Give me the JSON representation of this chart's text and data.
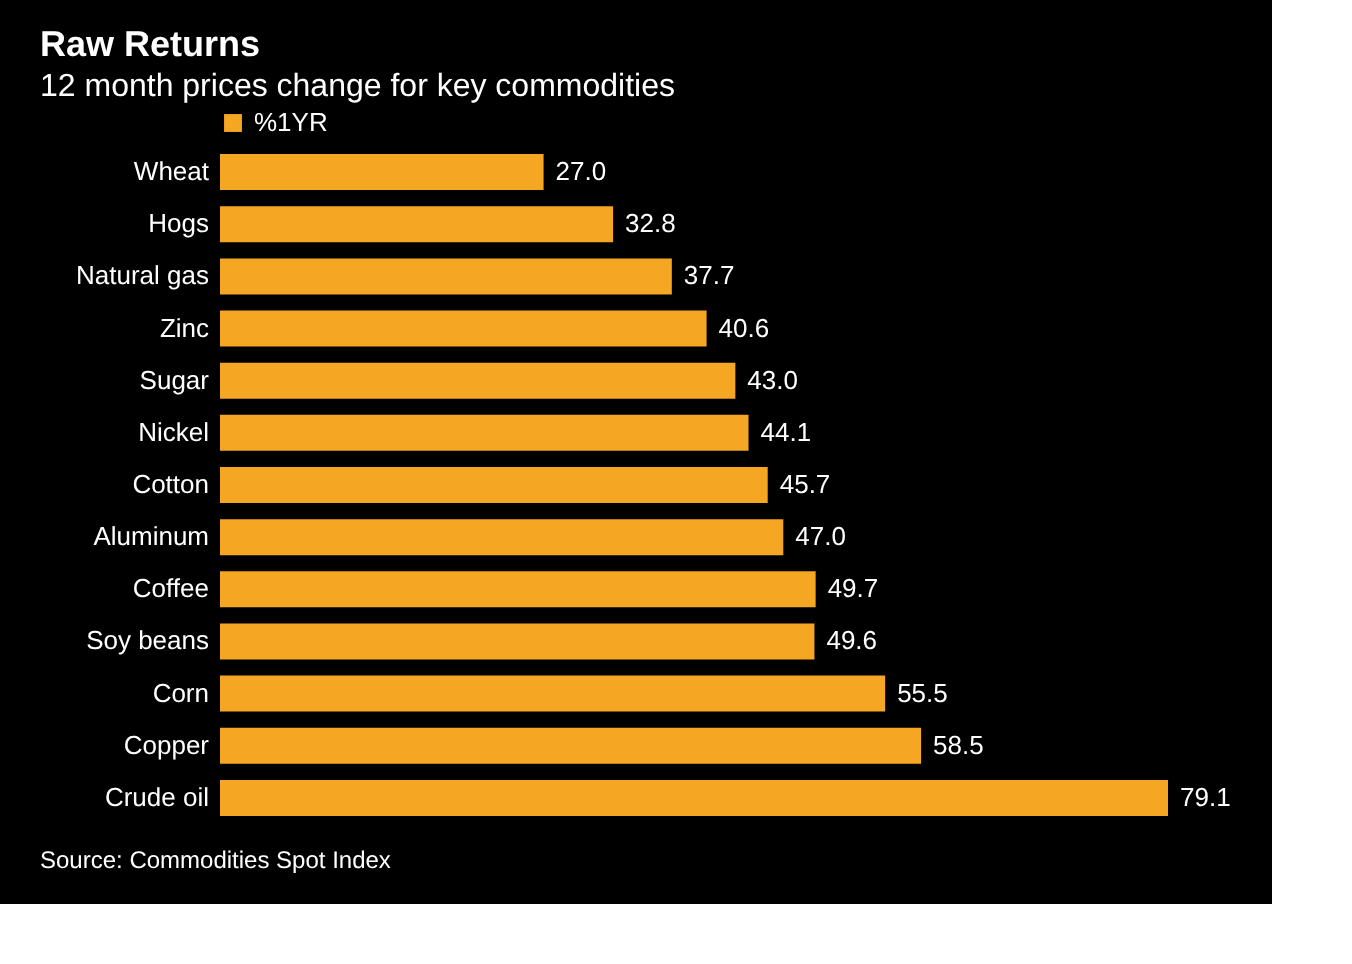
{
  "chart_data": {
    "type": "bar",
    "orientation": "horizontal",
    "title": "Raw Returns",
    "subtitle": "12 month prices change for key commodities",
    "categories": [
      "Wheat",
      "Hogs",
      "Natural gas",
      "Zinc",
      "Sugar",
      "Nickel",
      "Cotton",
      "Aluminum",
      "Coffee",
      "Soy beans",
      "Corn",
      "Copper",
      "Crude oil"
    ],
    "series": [
      {
        "name": "%1YR",
        "color": "#f5a623",
        "values": [
          27.0,
          32.8,
          37.7,
          40.6,
          43.0,
          44.1,
          45.7,
          47.0,
          49.7,
          49.6,
          55.5,
          58.5,
          79.1
        ],
        "value_labels": [
          "27.0",
          "32.8",
          "37.7",
          "40.6",
          "43.0",
          "44.1",
          "45.7",
          "47.0",
          "49.7",
          "49.6",
          "55.5",
          "58.5",
          "79.1"
        ]
      }
    ],
    "legend": "top left",
    "annotations": [
      "Source: Commodities Spot Index"
    ]
  }
}
